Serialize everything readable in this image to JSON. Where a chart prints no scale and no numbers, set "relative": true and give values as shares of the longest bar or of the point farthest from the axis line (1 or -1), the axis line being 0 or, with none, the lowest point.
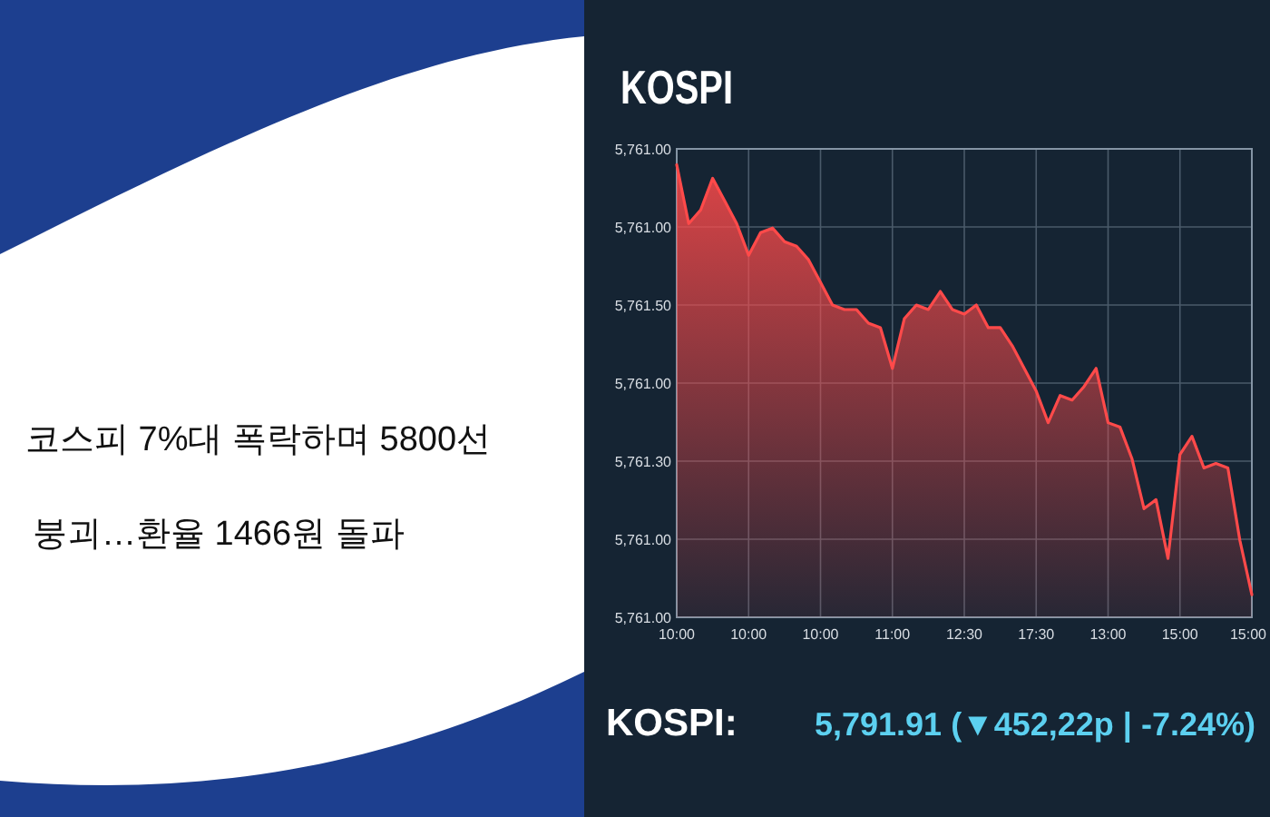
{
  "chart_data": {
    "type": "area",
    "title": "KOSPI",
    "relative": true,
    "annotations": [
      "코스피 7%대 폭락하며 5800선",
      "붕괴…환율 1466원 돌파",
      "KOSPI:",
      "5,791.91 (▼452,22p | -7.24%)",
      "5,761.00",
      "5,761.00",
      "5,761.50",
      "5,761.00",
      "5,761.30",
      "5,761.00",
      "5,761.00"
    ],
    "categories": [
      "10:00",
      null,
      null,
      null,
      null,
      null,
      "10:00",
      null,
      null,
      null,
      null,
      null,
      "10:00",
      null,
      null,
      null,
      null,
      null,
      "11:00",
      null,
      null,
      null,
      null,
      null,
      "12:30",
      null,
      null,
      null,
      null,
      null,
      "17:30",
      null,
      null,
      null,
      null,
      null,
      "13:00",
      null,
      null,
      null,
      null,
      null,
      "15:00",
      null,
      null,
      null,
      null,
      null,
      "15:00"
    ],
    "series": [
      {
        "color": "#ff4a4a",
        "values": [
          1,
          0.87,
          0.9,
          0.97,
          0.92,
          0.87,
          0.8,
          0.85,
          0.86,
          0.83,
          0.82,
          0.79,
          0.74,
          0.69,
          0.68,
          0.68,
          0.65,
          0.64,
          0.55,
          0.66,
          0.69,
          0.68,
          0.72,
          0.68,
          0.67,
          0.69,
          0.64,
          0.64,
          0.6,
          0.55,
          0.5,
          0.43,
          0.49,
          0.48,
          0.51,
          0.55,
          0.43,
          0.42,
          0.35,
          0.24,
          0.26,
          0.13,
          0.36,
          0.4,
          0.33,
          0.34,
          0.33,
          0.17,
          0.05
        ]
      }
    ],
    "grid": true
  }
}
